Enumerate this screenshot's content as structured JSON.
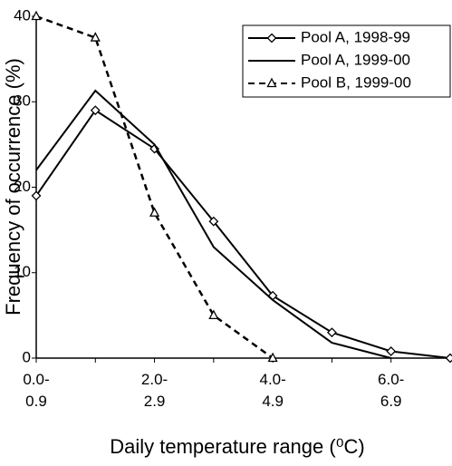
{
  "chart_data": {
    "type": "line",
    "y_label": "Frequency of occurrence (%)",
    "x_label": "Daily temperature range (⁰C)",
    "categories": [
      "0.0-\n0.9",
      null,
      "2.0-\n2.9",
      null,
      "4.0-\n4.9",
      null,
      "6.0-\n6.9",
      null
    ],
    "ylim": [
      0,
      40
    ],
    "yticks": [
      0,
      10,
      20,
      30,
      40
    ],
    "grid": false,
    "legend": "upper right",
    "series": [
      {
        "name": "Pool A, 1998-99",
        "color": "#000000",
        "marker": "diamond",
        "dash": false,
        "values": [
          19,
          29,
          24.5,
          16,
          7.3,
          3,
          0.8,
          0
        ]
      },
      {
        "name": "Pool A, 1999-00",
        "color": "#000000",
        "marker": "none",
        "dash": false,
        "values": [
          22,
          31.3,
          25,
          13,
          6.8,
          1.8,
          0,
          null
        ]
      },
      {
        "name": "Pool B, 1999-00",
        "color": "#000000",
        "marker": "triangle",
        "dash": true,
        "values": [
          40,
          37.5,
          17,
          5,
          0,
          null,
          null,
          null
        ]
      }
    ]
  }
}
